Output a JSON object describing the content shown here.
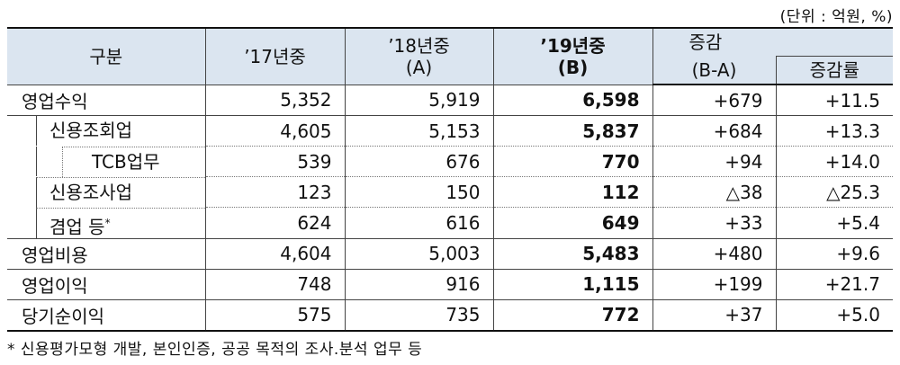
{
  "unit_note": "(단위 : 억원, %)",
  "header": {
    "category": "구분",
    "y17": "’17년중",
    "y18_line1": "’18년중",
    "y18_line2": "(A)",
    "y19_line1": "’19년중",
    "y19_line2": "(B)",
    "change_line1": "증감",
    "change_line2": "(B-A)",
    "change_rate": "증감률"
  },
  "rows": [
    {
      "label": "영업수익",
      "y17": "5,352",
      "y18": "5,919",
      "y19": "6,598",
      "change": "+679",
      "rate": "+11.5"
    },
    {
      "label": "신용조회업",
      "y17": "4,605",
      "y18": "5,153",
      "y19": "5,837",
      "change": "+684",
      "rate": "+13.3"
    },
    {
      "label": "TCB업무",
      "y17": "539",
      "y18": "676",
      "y19": "770",
      "change": "+94",
      "rate": "+14.0"
    },
    {
      "label": "신용조사업",
      "y17": "123",
      "y18": "150",
      "y19": "112",
      "change": "△38",
      "rate": "△25.3"
    },
    {
      "label": "겸업 등",
      "label_mark": "*",
      "y17": "624",
      "y18": "616",
      "y19": "649",
      "change": "+33",
      "rate": "+5.4"
    },
    {
      "label": "영업비용",
      "y17": "4,604",
      "y18": "5,003",
      "y19": "5,483",
      "change": "+480",
      "rate": "+9.6"
    },
    {
      "label": "영업이익",
      "y17": "748",
      "y18": "916",
      "y19": "1,115",
      "change": "+199",
      "rate": "+21.7"
    },
    {
      "label": "당기순이익",
      "y17": "575",
      "y18": "735",
      "y19": "772",
      "change": "+37",
      "rate": "+5.0"
    }
  ],
  "footnote": "* 신용평가모형 개발, 본인인증, 공공 목적의 조사.분석 업무 등"
}
